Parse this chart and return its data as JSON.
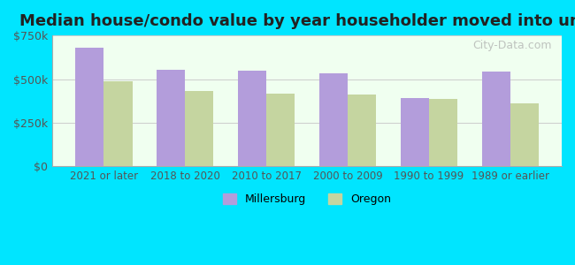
{
  "title": "Median house/condo value by year householder moved into unit",
  "categories": [
    "2021 or later",
    "2018 to 2020",
    "2010 to 2017",
    "2000 to 2009",
    "1990 to 1999",
    "1989 or earlier"
  ],
  "millersburg": [
    680000,
    555000,
    550000,
    535000,
    390000,
    545000
  ],
  "oregon": [
    490000,
    430000,
    415000,
    410000,
    385000,
    360000
  ],
  "millersburg_color": "#b39ddb",
  "oregon_color": "#c5d5a0",
  "background_color": "#00e5ff",
  "plot_bg_start": "#f0fff0",
  "plot_bg_end": "#ffffff",
  "ylim": [
    0,
    750000
  ],
  "yticks": [
    0,
    250000,
    500000,
    750000
  ],
  "ytick_labels": [
    "$0",
    "$250k",
    "$500k",
    "$750k"
  ],
  "legend_millersburg": "Millersburg",
  "legend_oregon": "Oregon",
  "watermark": "City-Data.com"
}
